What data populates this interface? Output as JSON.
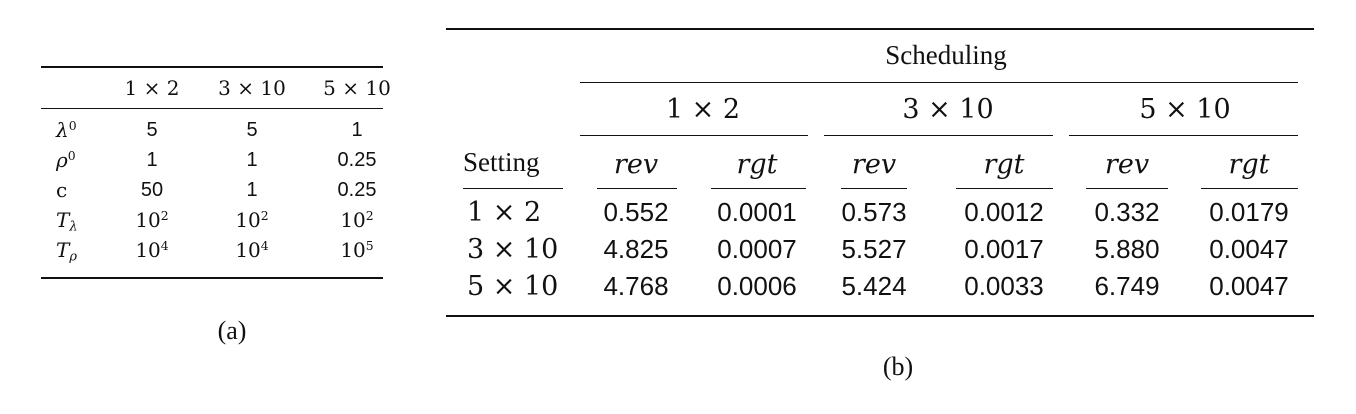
{
  "table_a": {
    "headers": [
      "1 × 2",
      "3 × 10",
      "5 × 10"
    ],
    "rows": [
      {
        "label": "λ",
        "label_sup": "0",
        "values": [
          "5",
          "5",
          "1"
        ]
      },
      {
        "label": "ρ",
        "label_sup": "0",
        "values": [
          "1",
          "1",
          "0.25"
        ]
      },
      {
        "label": "c",
        "values": [
          "50",
          "1",
          "0.25"
        ]
      },
      {
        "label": "T",
        "label_sub": "λ",
        "values": [
          {
            "b": "10",
            "e": "2"
          },
          {
            "b": "10",
            "e": "2"
          },
          {
            "b": "10",
            "e": "2"
          }
        ]
      },
      {
        "label": "T",
        "label_sub": "ρ",
        "values": [
          {
            "b": "10",
            "e": "4"
          },
          {
            "b": "10",
            "e": "4"
          },
          {
            "b": "10",
            "e": "5"
          }
        ]
      }
    ],
    "caption": "(a)"
  },
  "table_b": {
    "group_header": "Scheduling",
    "setting_label": "Setting",
    "groups": [
      "1 × 2",
      "3 × 10",
      "5 × 10"
    ],
    "subheaders": [
      "rev",
      "rgt",
      "rev",
      "rgt",
      "rev",
      "rgt"
    ],
    "rows": [
      {
        "setting": "1 × 2",
        "values": [
          "0.552",
          "0.0001",
          "0.573",
          "0.0012",
          "0.332",
          "0.0179"
        ]
      },
      {
        "setting": "3 × 10",
        "values": [
          "4.825",
          "0.0007",
          "5.527",
          "0.0017",
          "5.880",
          "0.0047"
        ]
      },
      {
        "setting": "5 × 10",
        "values": [
          "4.768",
          "0.0006",
          "5.424",
          "0.0033",
          "6.749",
          "0.0047"
        ]
      }
    ],
    "caption": "(b)"
  }
}
